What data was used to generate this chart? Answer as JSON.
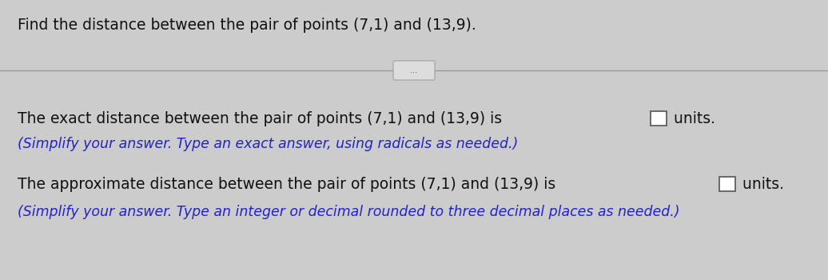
{
  "background_color": "#cccccc",
  "title_text": "Find the distance between the pair of points (7,1) and (13,9).",
  "title_fontsize": 13.5,
  "title_color": "#111111",
  "line_color": "#999999",
  "divider_button_dots": "...",
  "line1_prefix": "The exact distance between the pair of points (7,1) and (13,9) is ",
  "line1_suffix": " units.",
  "line2": "(Simplify your answer. Type an exact answer, using radicals as needed.)",
  "line3_prefix": "The approximate distance between the pair of points (7,1) and (13,9) is ",
  "line3_suffix": " units.",
  "line4": "(Simplify your answer. Type an integer or decimal rounded to three decimal places as needed.)",
  "body_fontsize": 13.5,
  "small_fontsize": 12.5,
  "body_blue": "#2222cc",
  "normal_color": "#111111",
  "box_facecolor": "#ffffff",
  "box_edgecolor": "#555555"
}
